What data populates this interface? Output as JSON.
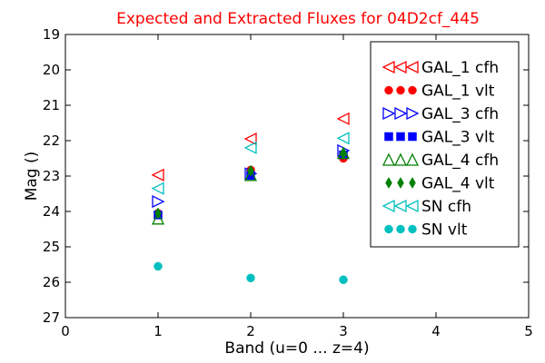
{
  "chart_data": {
    "type": "scatter",
    "title": "Expected and Extracted Fluxes for 04D2cf_445",
    "title_color": "#ff0000",
    "xlabel": "Band (u=0 ... z=4)",
    "ylabel": "Mag ()",
    "xlim": [
      0,
      5
    ],
    "ylim": [
      27,
      19
    ],
    "y_inverted": true,
    "x_ticks": [
      "0",
      "1",
      "2",
      "3",
      "4",
      "5"
    ],
    "y_ticks": [
      "19",
      "20",
      "21",
      "22",
      "23",
      "24",
      "25",
      "26",
      "27"
    ],
    "grid": false,
    "legend_position": "top-right",
    "series": [
      {
        "name": "GAL_1 cfh",
        "marker": "triangle-left",
        "filled": false,
        "color": "#ff0000",
        "x": [
          1,
          2,
          3
        ],
        "y": [
          22.97,
          21.95,
          21.38
        ]
      },
      {
        "name": "GAL_1 vlt",
        "marker": "circle",
        "filled": true,
        "color": "#ff0000",
        "x": [
          1,
          2,
          3
        ],
        "y": [
          24.05,
          22.83,
          22.5
        ]
      },
      {
        "name": "GAL_3 cfh",
        "marker": "triangle-right",
        "filled": false,
        "color": "#0000ff",
        "x": [
          1,
          2,
          3
        ],
        "y": [
          23.72,
          22.93,
          22.28
        ]
      },
      {
        "name": "GAL_3 vlt",
        "marker": "square",
        "filled": true,
        "color": "#0000ff",
        "x": [
          1,
          2,
          3
        ],
        "y": [
          24.1,
          22.98,
          22.4
        ]
      },
      {
        "name": "GAL_4 cfh",
        "marker": "triangle-up",
        "filled": false,
        "color": "#008000",
        "x": [
          1,
          2,
          3
        ],
        "y": [
          24.2,
          22.97,
          22.35
        ]
      },
      {
        "name": "GAL_4 vlt",
        "marker": "diamond",
        "filled": true,
        "color": "#008000",
        "x": [
          1,
          2,
          3
        ],
        "y": [
          24.05,
          22.85,
          22.38
        ]
      },
      {
        "name": "SN cfh",
        "marker": "triangle-left",
        "filled": false,
        "color": "#00bfbf",
        "x": [
          1,
          2,
          3
        ],
        "y": [
          23.35,
          22.2,
          21.93
        ]
      },
      {
        "name": "SN vlt",
        "marker": "circle",
        "filled": true,
        "color": "#00bfbf",
        "x": [
          1,
          2,
          3
        ],
        "y": [
          25.55,
          25.88,
          25.93
        ]
      }
    ]
  }
}
